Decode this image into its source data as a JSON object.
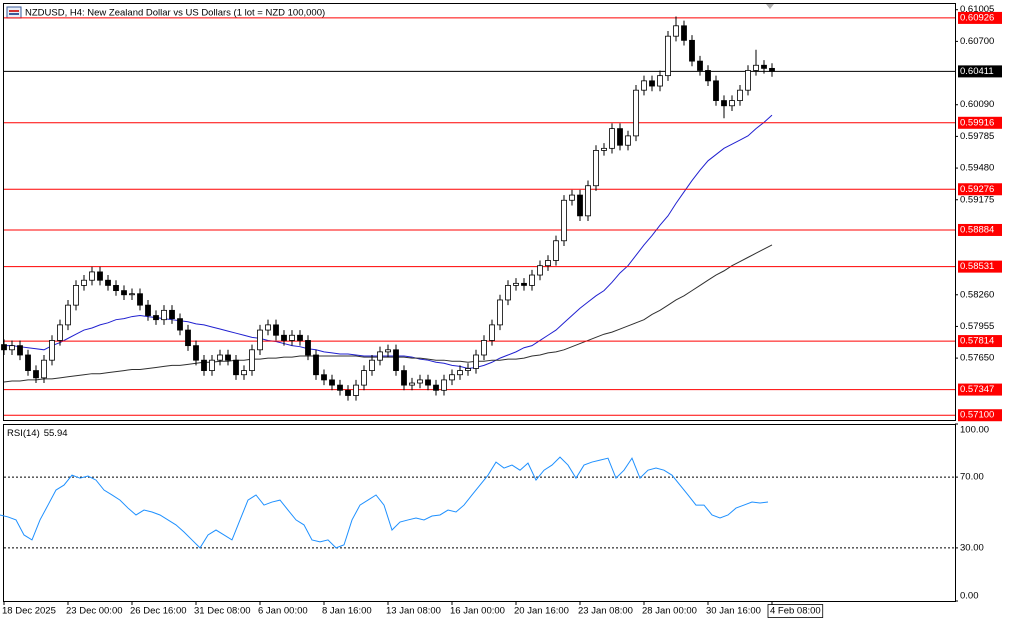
{
  "chart_data": [
    {
      "type": "candlestick",
      "title": "NZDUSD, H4:  New Zealand Dollar vs US Dollars (1 lot = NZD 100,000)",
      "categories": [
        "18 Dec 2025",
        null,
        null,
        null,
        null,
        null,
        null,
        null,
        "23 Dec 00:00",
        null,
        null,
        null,
        null,
        null,
        null,
        null,
        "26 Dec 16:00",
        null,
        null,
        null,
        null,
        null,
        null,
        null,
        "31 Dec 08:00",
        null,
        null,
        null,
        null,
        null,
        null,
        null,
        "6 Jan 00:00",
        null,
        null,
        null,
        null,
        null,
        null,
        null,
        "8 Jan 16:00",
        null,
        null,
        null,
        null,
        null,
        null,
        null,
        "13 Jan 08:00",
        null,
        null,
        null,
        null,
        null,
        null,
        null,
        "16 Jan 00:00",
        null,
        null,
        null,
        null,
        null,
        null,
        null,
        "20 Jan 16:00",
        null,
        null,
        null,
        null,
        null,
        null,
        null,
        "23 Jan 08:00",
        null,
        null,
        null,
        null,
        null,
        null,
        null,
        "28 Jan 00:00",
        null,
        null,
        null,
        null,
        null,
        null,
        null,
        "30 Jan 16:00",
        null,
        null,
        null,
        null,
        null,
        null,
        null,
        "4 Feb 08:00"
      ],
      "open": [
        0.5778,
        0.5773,
        0.5777,
        0.5768,
        0.5753,
        0.5746,
        0.5763,
        0.5782,
        0.5797,
        0.5816,
        0.5835,
        0.584,
        0.5848,
        0.584,
        0.5835,
        0.583,
        0.5826,
        0.5827,
        0.5816,
        0.5806,
        0.5802,
        0.5811,
        0.5803,
        0.5792,
        0.5777,
        0.5763,
        0.5753,
        0.5763,
        0.5768,
        0.5763,
        0.5749,
        0.5753,
        0.5773,
        0.5792,
        0.5797,
        0.5787,
        0.5782,
        0.5787,
        0.5782,
        0.5768,
        0.5749,
        0.5744,
        0.5739,
        0.5734,
        0.5729,
        0.5739,
        0.5753,
        0.5763,
        0.5771,
        0.5773,
        0.5753,
        0.5739,
        0.5741,
        0.5744,
        0.5739,
        0.5734,
        0.5744,
        0.5749,
        0.5753,
        0.5755,
        0.5768,
        0.5782,
        0.5797,
        0.5821,
        0.5835,
        0.5837,
        0.5835,
        0.5845,
        0.5854,
        0.5859,
        0.5878,
        0.5917,
        0.5922,
        0.5902,
        0.5931,
        0.5965,
        0.5967,
        0.5986,
        0.597,
        0.5979,
        0.6023,
        0.6032,
        0.6027,
        0.6037,
        0.6075,
        0.6085,
        0.6071,
        0.6051,
        0.6042,
        0.6032,
        0.6013,
        0.6008,
        0.6013,
        0.6023,
        0.6042,
        0.6047,
        0.6044
      ],
      "high": [
        0.5783,
        0.5782,
        0.5782,
        0.5773,
        0.5758,
        0.5768,
        0.5787,
        0.5802,
        0.5821,
        0.584,
        0.5845,
        0.5853,
        0.5853,
        0.5845,
        0.584,
        0.5835,
        0.5832,
        0.5832,
        0.5821,
        0.5811,
        0.5816,
        0.5816,
        0.5808,
        0.5797,
        0.5782,
        0.5768,
        0.5768,
        0.5773,
        0.5773,
        0.5768,
        0.5758,
        0.5778,
        0.5797,
        0.5802,
        0.5802,
        0.5792,
        0.5792,
        0.5792,
        0.5787,
        0.5773,
        0.5754,
        0.5749,
        0.5744,
        0.5739,
        0.5744,
        0.5758,
        0.5768,
        0.5776,
        0.5778,
        0.5778,
        0.5758,
        0.5746,
        0.5749,
        0.5749,
        0.5744,
        0.5749,
        0.5754,
        0.5758,
        0.576,
        0.5773,
        0.5787,
        0.5802,
        0.5826,
        0.584,
        0.5842,
        0.5842,
        0.585,
        0.5859,
        0.5864,
        0.5883,
        0.5922,
        0.5927,
        0.5927,
        0.5936,
        0.597,
        0.5972,
        0.5991,
        0.5991,
        0.5984,
        0.6028,
        0.6037,
        0.6037,
        0.6042,
        0.608,
        0.6094,
        0.609,
        0.6076,
        0.6056,
        0.6047,
        0.6037,
        0.6018,
        0.6018,
        0.6028,
        0.6047,
        0.6062,
        0.6052,
        0.6049
      ],
      "low": [
        0.5768,
        0.5768,
        0.5763,
        0.5748,
        0.5741,
        0.5741,
        0.5758,
        0.5777,
        0.5792,
        0.5811,
        0.583,
        0.5835,
        0.5835,
        0.583,
        0.5825,
        0.5821,
        0.5821,
        0.5811,
        0.5801,
        0.5797,
        0.5797,
        0.5798,
        0.5787,
        0.5772,
        0.5758,
        0.5748,
        0.5748,
        0.5758,
        0.5758,
        0.5744,
        0.5744,
        0.5748,
        0.5768,
        0.5787,
        0.5782,
        0.5777,
        0.5777,
        0.5777,
        0.5763,
        0.5744,
        0.5739,
        0.5734,
        0.5729,
        0.5724,
        0.5724,
        0.5734,
        0.5748,
        0.5758,
        0.5766,
        0.5748,
        0.5734,
        0.5734,
        0.5736,
        0.5734,
        0.5729,
        0.5729,
        0.5739,
        0.5744,
        0.5748,
        0.575,
        0.5763,
        0.5777,
        0.5792,
        0.5816,
        0.583,
        0.583,
        0.583,
        0.584,
        0.5849,
        0.5854,
        0.5873,
        0.5912,
        0.5897,
        0.5897,
        0.5926,
        0.596,
        0.5962,
        0.5965,
        0.5965,
        0.5974,
        0.6018,
        0.6022,
        0.6022,
        0.6032,
        0.607,
        0.6066,
        0.6046,
        0.6037,
        0.6027,
        0.6008,
        0.5996,
        0.6003,
        0.6008,
        0.6018,
        0.6037,
        0.6039,
        0.6036
      ],
      "close": [
        0.5773,
        0.5777,
        0.5768,
        0.5753,
        0.5746,
        0.5763,
        0.5782,
        0.5797,
        0.5816,
        0.5835,
        0.584,
        0.5848,
        0.584,
        0.5835,
        0.583,
        0.5826,
        0.5827,
        0.5816,
        0.5806,
        0.5802,
        0.5811,
        0.5803,
        0.5792,
        0.5777,
        0.5763,
        0.5753,
        0.5763,
        0.5768,
        0.5763,
        0.5749,
        0.5753,
        0.5773,
        0.5792,
        0.5797,
        0.5787,
        0.5782,
        0.5787,
        0.5782,
        0.5768,
        0.5749,
        0.5744,
        0.5739,
        0.5734,
        0.5729,
        0.5739,
        0.5753,
        0.5763,
        0.5771,
        0.5773,
        0.5753,
        0.5739,
        0.5741,
        0.5744,
        0.5739,
        0.5734,
        0.5744,
        0.5749,
        0.5753,
        0.5755,
        0.5768,
        0.5782,
        0.5797,
        0.5821,
        0.5835,
        0.5837,
        0.5835,
        0.5845,
        0.5854,
        0.5859,
        0.5878,
        0.5917,
        0.5922,
        0.5902,
        0.5931,
        0.5965,
        0.5967,
        0.5986,
        0.597,
        0.5979,
        0.6023,
        0.6032,
        0.6027,
        0.6037,
        0.6075,
        0.6085,
        0.6071,
        0.6051,
        0.6042,
        0.6032,
        0.6013,
        0.6008,
        0.6013,
        0.6023,
        0.6042,
        0.6047,
        0.6044,
        0.60411
      ],
      "bull_color": "#ffffff",
      "bear_color": "#000000",
      "overlays": [
        {
          "color": "#2020d0",
          "values": [
            0.5777,
            0.5777,
            0.5776,
            0.5775,
            0.5774,
            0.5773,
            0.5777,
            0.578,
            0.5784,
            0.5788,
            0.5792,
            0.5794,
            0.5797,
            0.5799,
            0.5802,
            0.5803,
            0.5805,
            0.5806,
            0.5805,
            0.5804,
            0.5803,
            0.5802,
            0.5801,
            0.58,
            0.5798,
            0.5797,
            0.5795,
            0.5793,
            0.5791,
            0.5789,
            0.5787,
            0.5785,
            0.5784,
            0.5782,
            0.5781,
            0.5779,
            0.5777,
            0.5776,
            0.5774,
            0.5773,
            0.5771,
            0.577,
            0.5769,
            0.5769,
            0.5768,
            0.5767,
            0.5767,
            0.5767,
            0.5767,
            0.5767,
            0.5767,
            0.5766,
            0.5764,
            0.5763,
            0.5761,
            0.576,
            0.5758,
            0.5757,
            0.5755,
            0.5756,
            0.5758,
            0.5761,
            0.5765,
            0.5768,
            0.5771,
            0.5775,
            0.5777,
            0.5782,
            0.5787,
            0.5792,
            0.5799,
            0.5806,
            0.5813,
            0.5819,
            0.5825,
            0.583,
            0.5838,
            0.5847,
            0.5854,
            0.5864,
            0.5874,
            0.5883,
            0.5893,
            0.5902,
            0.5914,
            0.5925,
            0.5936,
            0.5946,
            0.5955,
            0.5961,
            0.5967,
            0.5971,
            0.5975,
            0.5979,
            0.5986,
            0.5992,
            0.5999
          ]
        },
        {
          "color": "#303030",
          "values": [
            0.5742,
            0.5743,
            0.5743,
            0.5744,
            0.5744,
            0.5745,
            0.5745,
            0.5746,
            0.5747,
            0.5748,
            0.5749,
            0.575,
            0.575,
            0.5751,
            0.5752,
            0.5753,
            0.5754,
            0.5754,
            0.5755,
            0.5756,
            0.5757,
            0.5758,
            0.5758,
            0.5759,
            0.576,
            0.5761,
            0.5761,
            0.5762,
            0.5762,
            0.5763,
            0.5763,
            0.5764,
            0.5764,
            0.5765,
            0.5765,
            0.5766,
            0.5766,
            0.5767,
            0.5767,
            0.5767,
            0.5767,
            0.5767,
            0.5767,
            0.5767,
            0.5767,
            0.5766,
            0.5766,
            0.5766,
            0.5766,
            0.5766,
            0.5766,
            0.5765,
            0.5765,
            0.5764,
            0.5763,
            0.5763,
            0.5762,
            0.5762,
            0.5761,
            0.5762,
            0.5762,
            0.5763,
            0.5763,
            0.5764,
            0.5764,
            0.5765,
            0.5767,
            0.5768,
            0.577,
            0.5771,
            0.5773,
            0.5776,
            0.5779,
            0.5782,
            0.5785,
            0.5788,
            0.579,
            0.5793,
            0.5796,
            0.5799,
            0.5802,
            0.5807,
            0.5811,
            0.5816,
            0.5821,
            0.5825,
            0.583,
            0.5835,
            0.584,
            0.5845,
            0.5849,
            0.5854,
            0.5858,
            0.5862,
            0.5866,
            0.587,
            0.5874
          ]
        }
      ],
      "levels": [
        0.60926,
        0.59916,
        0.59276,
        0.58884,
        0.58531,
        0.57814,
        0.57347,
        {
          "value": 0.571,
          "label": "0.57100"
        }
      ],
      "level_color": "#ff0000",
      "current_price": 0.60411,
      "ylim": [
        0.57054,
        0.6106
      ],
      "yticks": [
        0.61005,
        {
          "value": 0.607,
          "label": "0.60700"
        },
        {
          "value": 0.6009,
          "label": "0.60090"
        },
        0.59785,
        {
          "value": 0.5948,
          "label": "0.59480"
        },
        0.59175,
        {
          "value": 0.5826,
          "label": "0.58260"
        },
        0.57955,
        {
          "value": 0.5765,
          "label": "0.57650"
        }
      ]
    },
    {
      "type": "line",
      "title": "RSI(14)",
      "current": 55.94,
      "color": "#1e90ff",
      "values": [
        48.6,
        47.5,
        45.8,
        37.3,
        34.5,
        45.8,
        54.2,
        62.7,
        65.5,
        71.1,
        69.4,
        70.6,
        68.3,
        62.7,
        59.9,
        57.0,
        52.5,
        48.6,
        51.4,
        50.3,
        48.6,
        45.8,
        43.0,
        39.0,
        34.5,
        30.0,
        37.3,
        40.1,
        37.3,
        34.5,
        45.8,
        57.0,
        59.9,
        54.2,
        55.9,
        57.0,
        51.4,
        45.8,
        43.0,
        34.5,
        33.4,
        34.5,
        30.0,
        31.7,
        45.8,
        54.2,
        57.0,
        59.9,
        54.2,
        40.1,
        44.6,
        45.8,
        46.9,
        45.8,
        48.0,
        48.6,
        51.4,
        50.3,
        54.2,
        59.9,
        65.5,
        71.1,
        78.5,
        75.1,
        76.8,
        73.9,
        77.9,
        68.3,
        73.9,
        76.8,
        81.3,
        76.8,
        69.4,
        76.8,
        78.5,
        79.6,
        80.7,
        69.4,
        73.9,
        80.7,
        69.4,
        73.9,
        75.1,
        73.9,
        71.1,
        65.5,
        59.9,
        54.2,
        54.2,
        48.6,
        46.9,
        48.6,
        52.5,
        54.2,
        55.9,
        55.4,
        55.94
      ],
      "levels": [
        70,
        30
      ],
      "ylim": [
        0,
        100
      ],
      "yticks": [
        {
          "value": 100,
          "label": "100.00"
        },
        {
          "value": 70,
          "label": "70.00"
        },
        {
          "value": 30,
          "label": "30.00"
        },
        {
          "value": 0,
          "label": "0.00"
        }
      ]
    }
  ]
}
